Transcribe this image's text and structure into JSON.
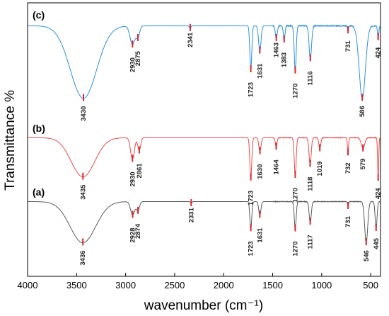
{
  "chart_data": {
    "type": "line",
    "xlabel": "wavenumber (cm⁻¹)",
    "ylabel": "Transmittance %",
    "xlim": [
      4000,
      400
    ],
    "x_reversed": true,
    "x_ticks": [
      4000,
      3500,
      3000,
      2500,
      2000,
      1500,
      1000,
      500
    ],
    "x_tick_labels": [
      "4000",
      "3500",
      "3000",
      "2500",
      "2000",
      "1500",
      "1000",
      "500"
    ],
    "y_ticks_shown": false,
    "grid": false,
    "peak_marker_color": "#d9282f",
    "series": [
      {
        "name": "(c)",
        "color": "#2b8fe0",
        "baseline": 0.96,
        "peaks": [
          {
            "x": 3430,
            "depth": 0.93,
            "width": 190
          },
          {
            "x": 2930,
            "depth": 0.24,
            "width": 35
          },
          {
            "x": 2875,
            "depth": 0.14,
            "width": 25
          },
          {
            "x": 2341,
            "depth": 0.03,
            "width": 12
          },
          {
            "x": 1723,
            "depth": 0.56,
            "width": 14
          },
          {
            "x": 1631,
            "depth": 0.32,
            "width": 18
          },
          {
            "x": 1463,
            "depth": 0.16,
            "width": 14
          },
          {
            "x": 1383,
            "depth": 0.18,
            "width": 12
          },
          {
            "x": 1270,
            "depth": 0.58,
            "width": 14
          },
          {
            "x": 1116,
            "depth": 0.42,
            "width": 18
          },
          {
            "x": 731,
            "depth": 0.06,
            "width": 8
          },
          {
            "x": 586,
            "depth": 0.93,
            "width": 45
          },
          {
            "x": 424,
            "depth": 0.15,
            "width": 10
          }
        ],
        "peak_labels": [
          "3430",
          "2930",
          "2875",
          "2341",
          "1723",
          "1631",
          "1463",
          "1383",
          "1270",
          "1116",
          "731",
          "586",
          "424"
        ]
      },
      {
        "name": "(b)",
        "color": "#ea4b4b",
        "baseline": 0.96,
        "peaks": [
          {
            "x": 3435,
            "depth": 0.92,
            "width": 170
          },
          {
            "x": 2930,
            "depth": 0.5,
            "width": 28
          },
          {
            "x": 2861,
            "depth": 0.3,
            "width": 20
          },
          {
            "x": 1723,
            "depth": 0.94,
            "width": 14
          },
          {
            "x": 1630,
            "depth": 0.32,
            "width": 16
          },
          {
            "x": 1464,
            "depth": 0.22,
            "width": 12
          },
          {
            "x": 1270,
            "depth": 0.88,
            "width": 14
          },
          {
            "x": 1118,
            "depth": 0.62,
            "width": 16
          },
          {
            "x": 1019,
            "depth": 0.25,
            "width": 14
          },
          {
            "x": 732,
            "depth": 0.35,
            "width": 8
          },
          {
            "x": 579,
            "depth": 0.25,
            "width": 25
          },
          {
            "x": 424,
            "depth": 0.95,
            "width": 8
          }
        ],
        "peak_labels": [
          "3435",
          "2930",
          "2861",
          "1723",
          "1630",
          "1464",
          "1270",
          "1118",
          "1019",
          "732",
          "579",
          "424"
        ]
      },
      {
        "name": "(a)",
        "color": "#5a5a5a",
        "baseline": 0.96,
        "peaks": [
          {
            "x": 3436,
            "depth": 0.92,
            "width": 185
          },
          {
            "x": 2928,
            "depth": 0.3,
            "width": 30
          },
          {
            "x": 2874,
            "depth": 0.2,
            "width": 22
          },
          {
            "x": 2331,
            "depth": 0.04,
            "width": 10
          },
          {
            "x": 1723,
            "depth": 0.6,
            "width": 14
          },
          {
            "x": 1631,
            "depth": 0.3,
            "width": 16
          },
          {
            "x": 1270,
            "depth": 0.6,
            "width": 14
          },
          {
            "x": 1117,
            "depth": 0.46,
            "width": 16
          },
          {
            "x": 731,
            "depth": 0.1,
            "width": 8
          },
          {
            "x": 546,
            "depth": 0.92,
            "width": 22
          },
          {
            "x": 445,
            "depth": 0.6,
            "width": 14
          }
        ],
        "peak_labels": [
          "3436",
          "2928",
          "2874",
          "2331",
          "1723",
          "1631",
          "1270",
          "1117",
          "731",
          "546",
          "445"
        ]
      }
    ]
  }
}
